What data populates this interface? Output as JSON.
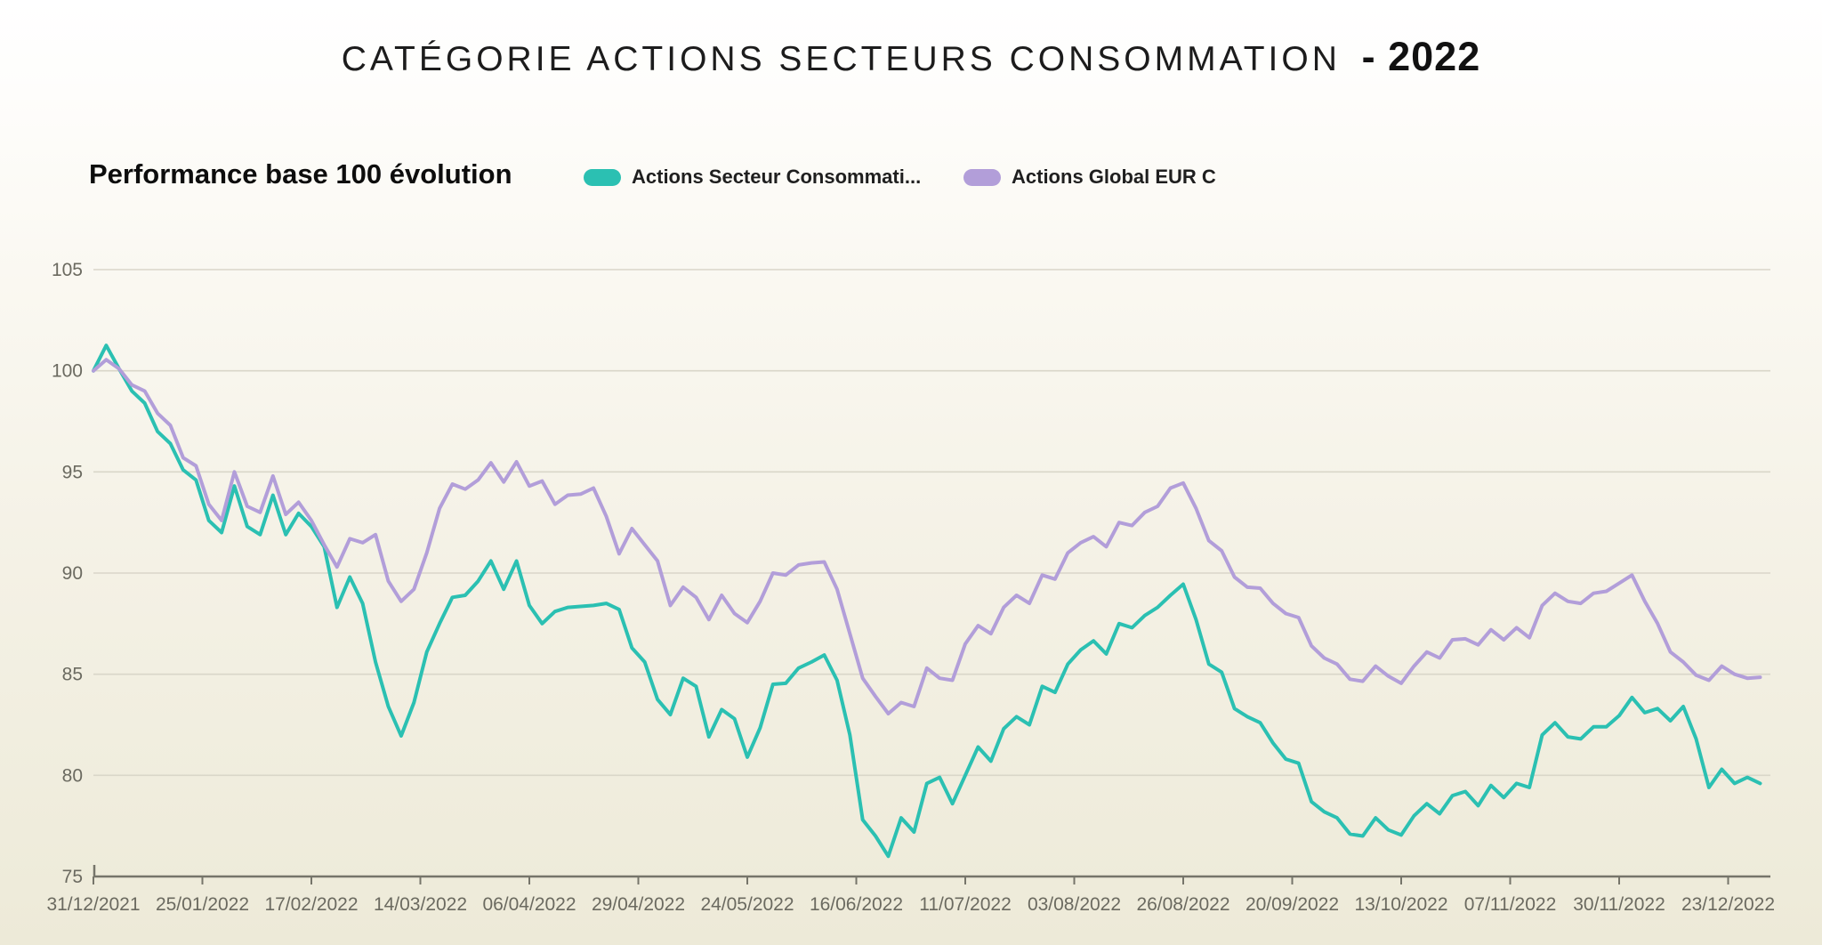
{
  "title": {
    "main": "CATÉGORIE ACTIONS SECTEURS CONSOMMATION",
    "year_suffix": "- 2022"
  },
  "subtitle": "Performance base 100 évolution",
  "legend": [
    {
      "label": "Actions Secteur Consommati...",
      "color": "#2bc0b2"
    },
    {
      "label": "Actions Global EUR C",
      "color": "#b29ed9"
    }
  ],
  "colors": {
    "series_sector": "#2bc0b2",
    "series_global": "#b29ed9",
    "grid": "#d9d6c9",
    "axis": "#76756a",
    "tick_text": "#6b6a60",
    "background_top": "#ffffff",
    "background_bottom": "#edead8"
  },
  "chart_data": {
    "type": "line",
    "title": "CATÉGORIE ACTIONS SECTEURS CONSOMMATION - 2022",
    "subtitle": "Performance base 100 évolution",
    "ylabel": "",
    "xlabel": "",
    "ylim": [
      75,
      105
    ],
    "yticks": [
      105,
      100,
      95,
      90,
      85,
      80,
      75
    ],
    "grid": true,
    "legend_position": "top",
    "x_tick_labels": [
      "31/12/2021",
      "25/01/2022",
      "17/02/2022",
      "14/03/2022",
      "06/04/2022",
      "29/04/2022",
      "24/05/2022",
      "16/06/2022",
      "11/07/2022",
      "03/08/2022",
      "26/08/2022",
      "20/09/2022",
      "13/10/2022",
      "07/11/2022",
      "30/11/2022",
      "23/12/2022"
    ],
    "points_per_tick_interval": 8.5,
    "series": [
      {
        "name": "Actions Secteur Consommati...",
        "color": "#2bc0b2",
        "values": [
          100,
          101.25,
          100.1,
          99,
          98.4,
          97,
          96.4,
          95.1,
          94.6,
          92.6,
          92,
          94.3,
          92.3,
          91.9,
          93.85,
          91.9,
          92.95,
          92.3,
          91.3,
          88.3,
          89.8,
          88.5,
          85.6,
          83.4,
          81.95,
          83.6,
          86.1,
          87.5,
          88.8,
          88.9,
          89.6,
          90.6,
          89.2,
          90.6,
          88.4,
          87.5,
          88.1,
          88.3,
          88.35,
          88.4,
          88.5,
          88.2,
          86.3,
          85.6,
          83.75,
          83,
          84.8,
          84.4,
          81.9,
          83.25,
          82.8,
          80.9,
          82.35,
          84.5,
          84.55,
          85.3,
          85.6,
          85.95,
          84.7,
          82,
          77.8,
          77,
          76,
          77.9,
          77.2,
          79.6,
          79.9,
          78.6,
          80,
          81.4,
          80.7,
          82.3,
          82.9,
          82.5,
          84.4,
          84.1,
          85.5,
          86.2,
          86.65,
          86,
          87.5,
          87.3,
          87.9,
          88.3,
          88.9,
          89.45,
          87.7,
          85.5,
          85.1,
          83.3,
          82.9,
          82.6,
          81.6,
          80.8,
          80.6,
          78.7,
          78.2,
          77.9,
          77.1,
          77,
          77.9,
          77.3,
          77.05,
          78,
          78.6,
          78.1,
          79,
          79.2,
          78.5,
          79.5,
          78.9,
          79.6,
          79.4,
          82,
          82.6,
          81.9,
          81.8,
          82.4,
          82.4,
          82.95,
          83.85,
          83.1,
          83.3,
          82.7,
          83.4,
          81.8,
          79.4,
          80.3,
          79.6,
          79.9,
          79.6
        ]
      },
      {
        "name": "Actions Global EUR C",
        "color": "#b29ed9",
        "values": [
          100,
          100.55,
          100.1,
          99.3,
          99,
          97.9,
          97.3,
          95.7,
          95.3,
          93.4,
          92.6,
          95,
          93.3,
          93,
          94.8,
          92.9,
          93.5,
          92.6,
          91.4,
          90.3,
          91.7,
          91.5,
          91.9,
          89.6,
          88.6,
          89.2,
          91,
          93.2,
          94.4,
          94.15,
          94.6,
          95.45,
          94.5,
          95.5,
          94.3,
          94.55,
          93.4,
          93.85,
          93.9,
          94.2,
          92.8,
          90.95,
          92.2,
          91.4,
          90.6,
          88.4,
          89.3,
          88.8,
          87.7,
          88.9,
          88,
          87.55,
          88.6,
          90,
          89.9,
          90.4,
          90.5,
          90.55,
          89.2,
          87,
          84.8,
          83.9,
          83.05,
          83.6,
          83.4,
          85.3,
          84.8,
          84.7,
          86.5,
          87.4,
          87,
          88.3,
          88.9,
          88.5,
          89.9,
          89.7,
          91,
          91.5,
          91.8,
          91.3,
          92.5,
          92.35,
          93,
          93.3,
          94.2,
          94.45,
          93.2,
          91.6,
          91.1,
          89.8,
          89.3,
          89.25,
          88.5,
          88,
          87.8,
          86.4,
          85.8,
          85.5,
          84.75,
          84.65,
          85.4,
          84.9,
          84.55,
          85.4,
          86.1,
          85.8,
          86.7,
          86.75,
          86.45,
          87.2,
          86.7,
          87.3,
          86.8,
          88.4,
          89,
          88.6,
          88.5,
          89,
          89.1,
          89.5,
          89.9,
          88.6,
          87.5,
          86.1,
          85.6,
          84.95,
          84.7,
          85.4,
          85,
          84.8,
          84.85
        ]
      }
    ]
  }
}
